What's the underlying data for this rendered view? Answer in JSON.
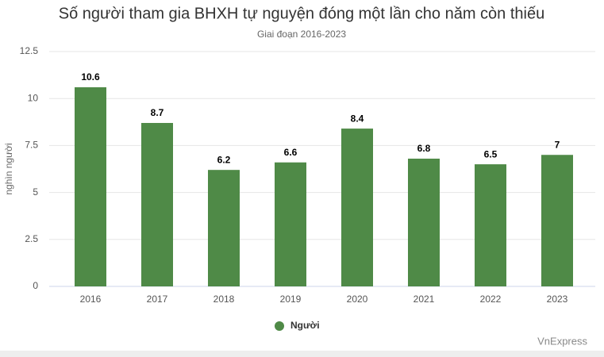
{
  "chart_data": {
    "type": "bar",
    "title": "Số người tham gia BHXH tự nguyện đóng một lần cho năm còn thiếu",
    "subtitle": "Giai đoạn 2016-2023",
    "y_label": "nghìn người",
    "categories": [
      "2016",
      "2017",
      "2018",
      "2019",
      "2020",
      "2021",
      "2022",
      "2023"
    ],
    "series": [
      {
        "name": "Người",
        "color": "#4f8a47",
        "values": [
          10.6,
          8.7,
          6.2,
          6.6,
          8.4,
          6.8,
          6.5,
          7
        ]
      }
    ],
    "ylim": [
      0,
      12.5
    ],
    "yticks": [
      0,
      2.5,
      5,
      7.5,
      10,
      12.5
    ],
    "grid": true,
    "legend": "bottom",
    "credit": "VnExpress"
  }
}
